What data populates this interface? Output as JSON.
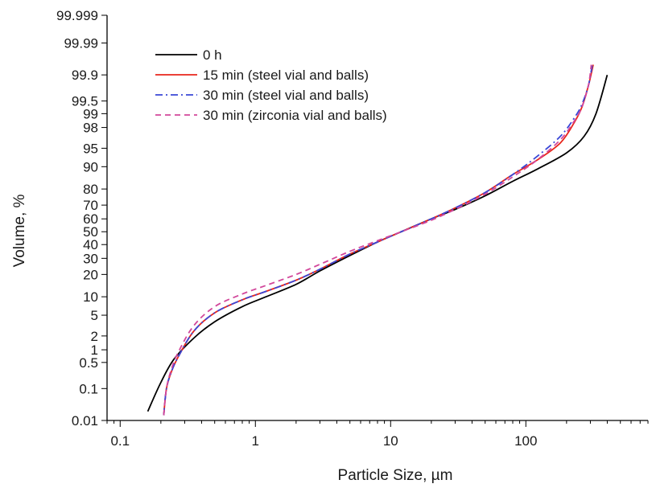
{
  "chart_data": {
    "type": "line",
    "xlabel": "Particle Size, µm",
    "ylabel": "Volume, %",
    "x_scale": "log",
    "y_scale": "probability",
    "xlim": [
      0.08,
      800
    ],
    "ylim": [
      0.01,
      99.999
    ],
    "x_ticks": [
      {
        "value": 0.1,
        "label": "0.1"
      },
      {
        "value": 1,
        "label": "1"
      },
      {
        "value": 10,
        "label": "10"
      },
      {
        "value": 100,
        "label": "100"
      }
    ],
    "y_ticks": [
      {
        "value": 0.01,
        "label": "0.01"
      },
      {
        "value": 0.1,
        "label": "0.1"
      },
      {
        "value": 0.5,
        "label": "0.5"
      },
      {
        "value": 1,
        "label": "1"
      },
      {
        "value": 2,
        "label": "2"
      },
      {
        "value": 5,
        "label": "5"
      },
      {
        "value": 10,
        "label": "10"
      },
      {
        "value": 20,
        "label": "20"
      },
      {
        "value": 30,
        "label": "30"
      },
      {
        "value": 40,
        "label": "40"
      },
      {
        "value": 50,
        "label": "50"
      },
      {
        "value": 60,
        "label": "60"
      },
      {
        "value": 70,
        "label": "70"
      },
      {
        "value": 80,
        "label": "80"
      },
      {
        "value": 90,
        "label": "90"
      },
      {
        "value": 95,
        "label": "95"
      },
      {
        "value": 98,
        "label": "98"
      },
      {
        "value": 99,
        "label": "99"
      },
      {
        "value": 99.5,
        "label": "99.5"
      },
      {
        "value": 99.9,
        "label": "99.9"
      },
      {
        "value": 99.99,
        "label": "99.99"
      },
      {
        "value": 99.999,
        "label": "99.999"
      }
    ],
    "grid": false,
    "legend_position": "top-left",
    "series": [
      {
        "name": "0 h",
        "color": "#000000",
        "dash": "solid",
        "x": [
          0.16,
          0.2,
          0.25,
          0.35,
          0.5,
          0.8,
          1.2,
          2,
          3,
          5,
          8,
          12,
          20,
          30,
          50,
          80,
          120,
          200,
          270,
          330,
          400
        ],
        "y": [
          0.02,
          0.15,
          0.6,
          1.8,
          3.8,
          7,
          10,
          15,
          22,
          32,
          42,
          50,
          60,
          67,
          76,
          84,
          89,
          94,
          97,
          99,
          99.9
        ]
      },
      {
        "name": "15 min (steel vial and balls)",
        "color": "#e8261c",
        "dash": "solid",
        "x": [
          0.21,
          0.22,
          0.24,
          0.27,
          0.35,
          0.5,
          0.8,
          1.2,
          2,
          3,
          5,
          8,
          12,
          20,
          30,
          50,
          80,
          120,
          180,
          230,
          260,
          290,
          315
        ],
        "y": [
          0.015,
          0.1,
          0.3,
          0.7,
          2.5,
          5.5,
          9,
          12,
          17,
          23,
          33,
          42,
          50,
          60,
          68,
          78,
          87,
          92,
          96,
          98.5,
          99.3,
          99.8,
          99.95
        ]
      },
      {
        "name": "30 min (steel vial and balls)",
        "color": "#3a47d6",
        "dash": "dashdot",
        "x": [
          0.21,
          0.22,
          0.24,
          0.27,
          0.35,
          0.5,
          0.8,
          1.2,
          2,
          3,
          5,
          8,
          12,
          20,
          30,
          50,
          80,
          120,
          180,
          230,
          260,
          290,
          310
        ],
        "y": [
          0.015,
          0.1,
          0.3,
          0.7,
          2.5,
          5.5,
          9,
          12,
          17,
          23,
          33,
          42,
          50,
          60,
          68,
          78,
          87,
          93,
          97,
          98.8,
          99.4,
          99.8,
          99.95
        ]
      },
      {
        "name": "30 min (zirconia vial and balls)",
        "color": "#d2479b",
        "dash": "dash",
        "x": [
          0.21,
          0.22,
          0.24,
          0.27,
          0.35,
          0.5,
          0.8,
          1.2,
          2,
          3,
          5,
          8,
          12,
          20,
          30,
          50,
          80,
          120,
          180,
          230,
          260,
          290,
          305
        ],
        "y": [
          0.015,
          0.1,
          0.35,
          0.9,
          3.2,
          7,
          11,
          14.5,
          20,
          26,
          35,
          43,
          50,
          59,
          67,
          77,
          86,
          92,
          96.5,
          98.6,
          99.3,
          99.8,
          99.95
        ]
      }
    ]
  }
}
